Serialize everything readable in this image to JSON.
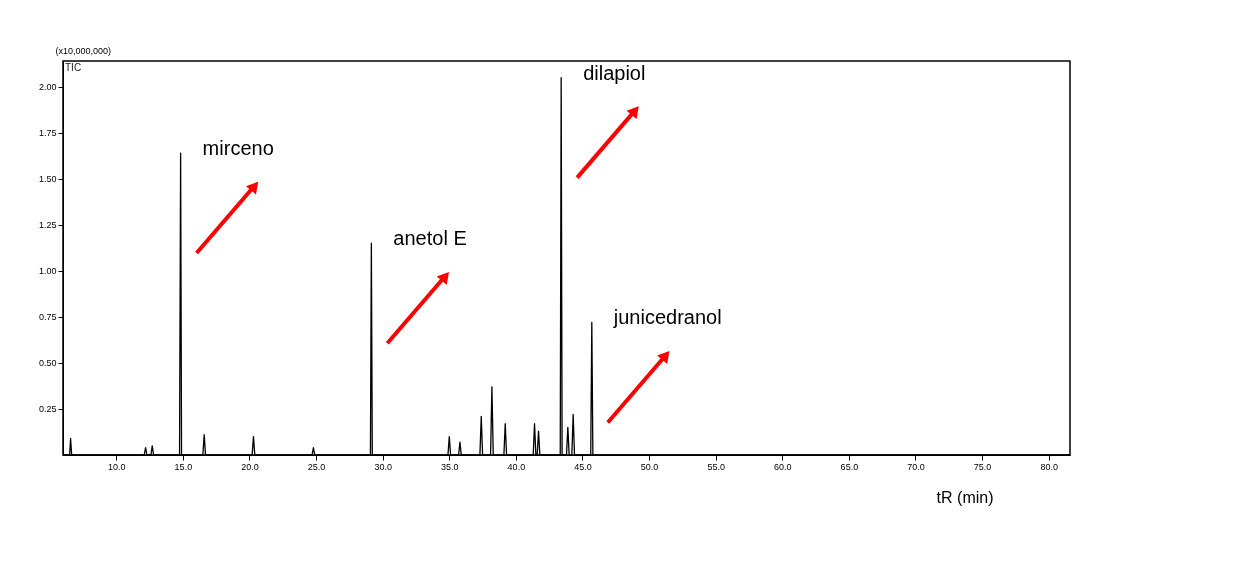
{
  "chart_data": {
    "type": "line",
    "xlabel": "tR (min)",
    "ylabel": "(x10,000,000)",
    "xlim": [
      6,
      81.6
    ],
    "ylim": [
      0,
      2.14
    ],
    "xticks": [
      {
        "value": 10,
        "label": "10.0"
      },
      {
        "value": 15,
        "label": "15.0"
      },
      {
        "value": 20,
        "label": "20.0"
      },
      {
        "value": 25,
        "label": "25.0"
      },
      {
        "value": 30,
        "label": "30.0"
      },
      {
        "value": 35,
        "label": "35.0"
      },
      {
        "value": 40,
        "label": "40.0"
      },
      {
        "value": 45,
        "label": "45.0"
      },
      {
        "value": 50,
        "label": "50.0"
      },
      {
        "value": 55,
        "label": "55.0"
      },
      {
        "value": 60,
        "label": "60.0"
      },
      {
        "value": 65,
        "label": "65.0"
      },
      {
        "value": 70,
        "label": "70.0"
      },
      {
        "value": 75,
        "label": "75.0"
      },
      {
        "value": 80,
        "label": "80.0"
      }
    ],
    "yticks": [
      {
        "value": 0.25,
        "label": "0.25"
      },
      {
        "value": 0.5,
        "label": "0.50"
      },
      {
        "value": 0.75,
        "label": "0.75"
      },
      {
        "value": 1,
        "label": "1.00"
      },
      {
        "value": 1.25,
        "label": "1.25"
      },
      {
        "value": 1.5,
        "label": "1.50"
      },
      {
        "value": 1.75,
        "label": "1.75"
      },
      {
        "value": 2,
        "label": "2.00"
      }
    ],
    "grid": false,
    "marker": "none",
    "line_style": "solid",
    "series": [
      {
        "color": "#000000",
        "x": [
          6.0,
          6.5,
          6.57,
          6.65,
          12.1,
          12.2,
          12.3,
          12.6,
          12.7,
          12.8,
          14.75,
          14.83,
          14.9,
          16.5,
          16.6,
          16.7,
          20.2,
          20.3,
          20.4,
          24.7,
          24.8,
          24.9,
          29.08,
          29.15,
          29.22,
          34.9,
          35.0,
          35.1,
          35.7,
          35.8,
          35.9,
          37.3,
          37.4,
          37.5,
          38.1,
          38.2,
          38.3,
          39.1,
          39.2,
          39.3,
          41.3,
          41.4,
          41.5,
          41.6,
          41.7,
          41.8,
          43.33,
          43.4,
          43.47,
          43.8,
          43.9,
          44.0,
          44.2,
          44.3,
          44.4,
          45.62,
          45.7,
          45.78,
          81.6
        ],
        "values": [
          0,
          0,
          0.09,
          0,
          0,
          0.04,
          0,
          0,
          0.05,
          0,
          0,
          1.64,
          0,
          0,
          0.11,
          0,
          0,
          0.1,
          0,
          0,
          0.04,
          0,
          0,
          1.15,
          0,
          0,
          0.1,
          0,
          0,
          0.07,
          0,
          0,
          0.21,
          0,
          0,
          0.37,
          0,
          0,
          0.17,
          0,
          0,
          0.17,
          0,
          0,
          0.13,
          0,
          0,
          2.05,
          0,
          0,
          0.15,
          0,
          0,
          0.22,
          0,
          0,
          0.72,
          0,
          0
        ]
      }
    ],
    "annotations": [
      "TIC",
      {
        "text": "mirceno",
        "x": 14.83,
        "y": 1.64
      },
      {
        "text": "anetol E",
        "x": 29.15,
        "y": 1.15
      },
      {
        "text": "dilapiol",
        "x": 43.4,
        "y": 2.05
      },
      {
        "text": "junicedranol",
        "x": 45.7,
        "y": 0.72
      }
    ]
  }
}
